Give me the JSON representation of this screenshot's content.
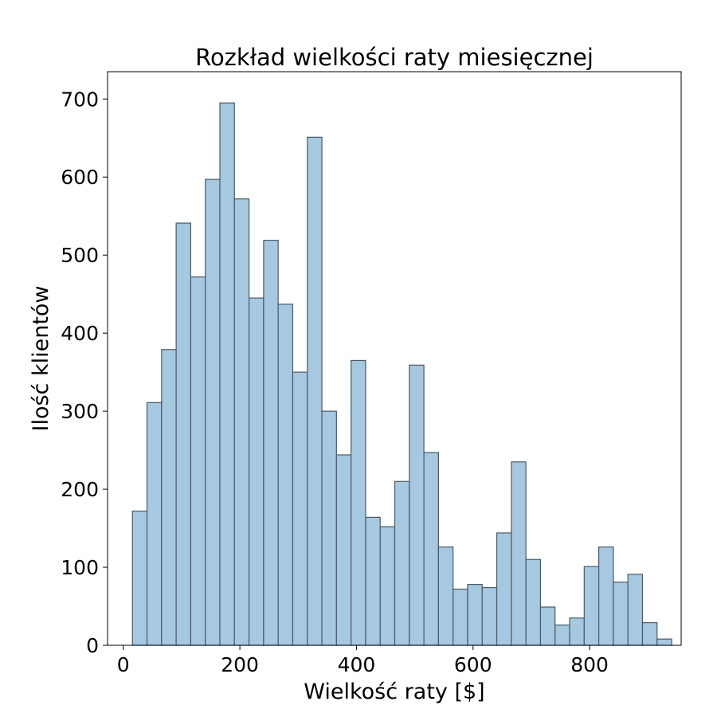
{
  "chart_data": {
    "type": "bar",
    "title": "Rozkład wielkości raty miesięcznej",
    "xlabel": "Wielkość raty [$]",
    "ylabel": "Ilość klientów",
    "xlim": [
      -27,
      957
    ],
    "ylim": [
      0,
      735
    ],
    "xticks": [
      0,
      200,
      400,
      600,
      800
    ],
    "yticks": [
      0,
      100,
      200,
      300,
      400,
      500,
      600,
      700
    ],
    "bin_edges": [
      15.7,
      40.7,
      65.7,
      90.7,
      115.7,
      140.7,
      165.7,
      190.7,
      215.7,
      240.7,
      265.7,
      290.7,
      315.7,
      340.7,
      365.7,
      390.7,
      415.7,
      440.7,
      465.7,
      490.7,
      515.7,
      540.7,
      565.7,
      590.7,
      615.7,
      640.7,
      665.7,
      690.7,
      715.7,
      740.7,
      765.7,
      790.7,
      815.7,
      840.7,
      865.7,
      890.7,
      915.7,
      940.7
    ],
    "values": [
      172,
      311,
      379,
      541,
      472,
      597,
      695,
      572,
      445,
      519,
      437,
      350,
      651,
      300,
      244,
      365,
      164,
      152,
      210,
      359,
      247,
      126,
      72,
      78,
      74,
      144,
      235,
      110,
      49,
      26,
      35,
      101,
      126,
      81,
      91,
      29,
      8
    ],
    "bar_color": "#a6c8e0",
    "edge_color": "#4c5a66",
    "grid": false
  }
}
